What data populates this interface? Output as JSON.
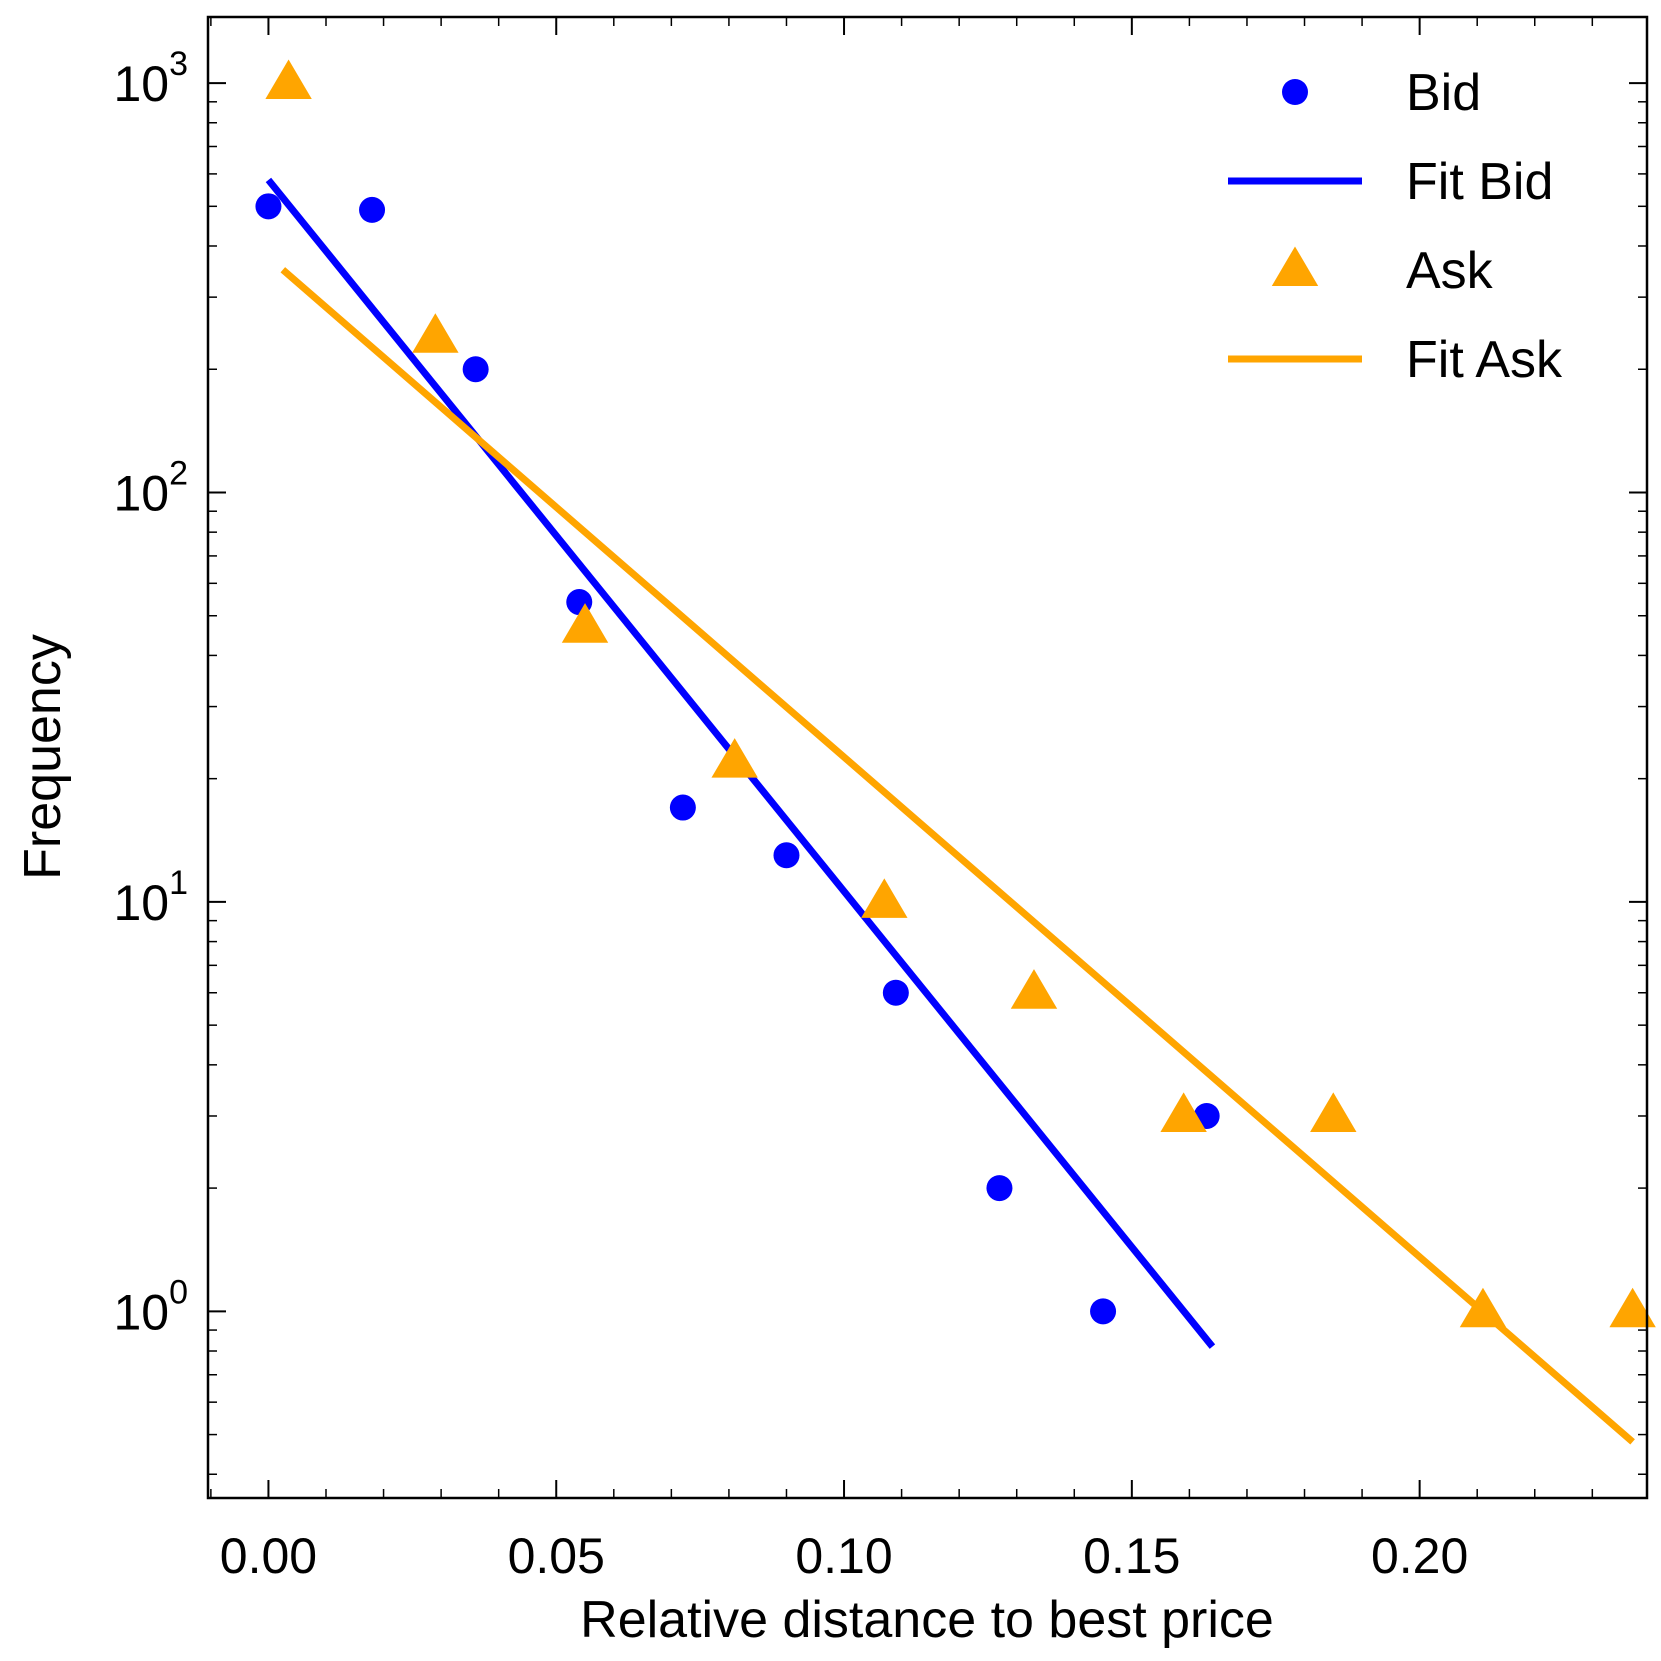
{
  "chart_data": {
    "type": "scatter",
    "xlabel": "Relative distance to best price",
    "ylabel": "Frequency",
    "xlim": [
      -0.0105,
      0.2395
    ],
    "ylim": [
      0.35,
      1450
    ],
    "yscale": "log",
    "x_ticks": [
      0.0,
      0.05,
      0.1,
      0.15,
      0.2
    ],
    "x_tick_labels": [
      "0.00",
      "0.05",
      "0.10",
      "0.15",
      "0.20"
    ],
    "y_ticks": [
      {
        "value": 1,
        "base": "10",
        "exp": "0"
      },
      {
        "value": 10,
        "base": "10",
        "exp": "1"
      },
      {
        "value": 100,
        "base": "10",
        "exp": "2"
      },
      {
        "value": 1000,
        "base": "10",
        "exp": "3"
      }
    ],
    "legend_position": "top-right",
    "series": [
      {
        "name": "Bid",
        "kind": "scatter",
        "marker": "circle",
        "color": "#0000ff",
        "x": [
          0.0,
          0.018,
          0.036,
          0.054,
          0.072,
          0.09,
          0.109,
          0.127,
          0.145,
          0.163
        ],
        "y": [
          500,
          490,
          200,
          54,
          17,
          13,
          6,
          2,
          1,
          3
        ]
      },
      {
        "name": "Fit Bid",
        "kind": "line",
        "color": "#0000ff",
        "x": [
          0.0,
          0.164
        ],
        "y": [
          580,
          0.82
        ]
      },
      {
        "name": "Ask",
        "kind": "scatter",
        "marker": "triangle",
        "color": "#ffa500",
        "x": [
          0.0035,
          0.029,
          0.055,
          0.081,
          0.107,
          0.133,
          0.159,
          0.185,
          0.211,
          0.237
        ],
        "y": [
          1000,
          240,
          47,
          22,
          10,
          6,
          3,
          3,
          1,
          1
        ]
      },
      {
        "name": "Fit Ask",
        "kind": "line",
        "color": "#ffa500",
        "x": [
          0.0025,
          0.237
        ],
        "y": [
          350,
          0.48
        ]
      }
    ]
  }
}
